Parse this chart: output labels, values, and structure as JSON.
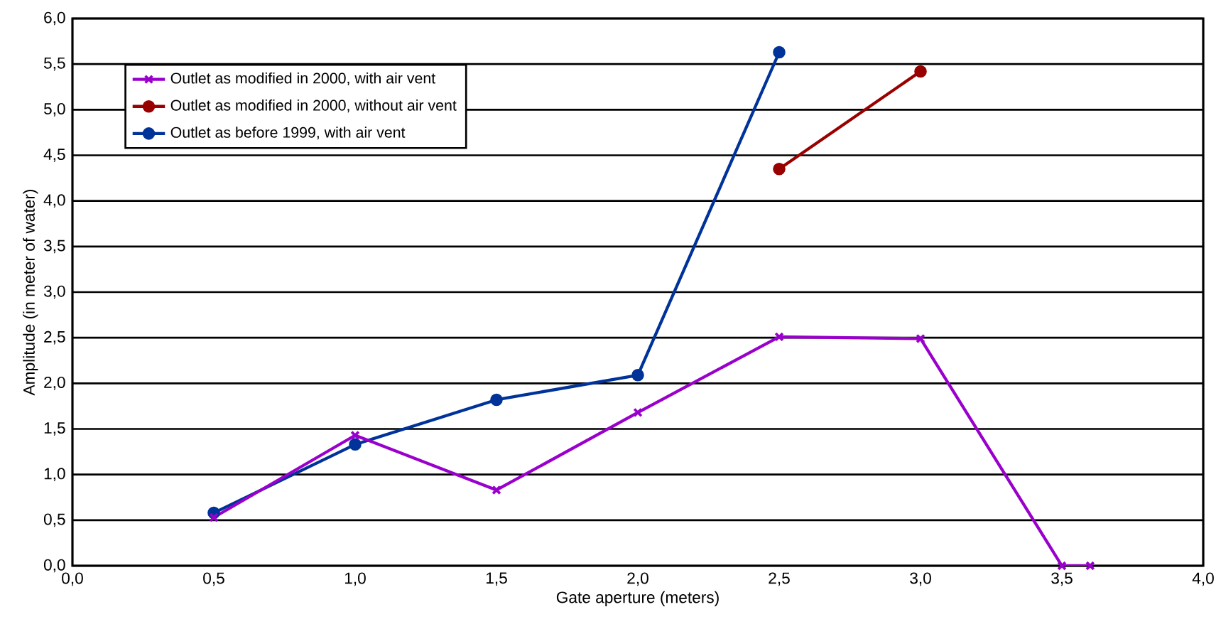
{
  "chart_data": {
    "type": "line",
    "xlabel": "Gate aperture (meters)",
    "ylabel": "Amplitude (in meter of water)",
    "xlim": [
      0,
      4
    ],
    "ylim": [
      0,
      6
    ],
    "xticks": [
      {
        "value": 0,
        "label": "0,0"
      },
      {
        "value": 0.5,
        "label": "0,5"
      },
      {
        "value": 1,
        "label": "1,0"
      },
      {
        "value": 1.5,
        "label": "1,5"
      },
      {
        "value": 2,
        "label": "2,0"
      },
      {
        "value": 2.5,
        "label": "2,5"
      },
      {
        "value": 3,
        "label": "3,0"
      },
      {
        "value": 3.5,
        "label": "3,5"
      },
      {
        "value": 4,
        "label": "4,0"
      }
    ],
    "yticks": [
      {
        "value": 0,
        "label": "0,0"
      },
      {
        "value": 0.5,
        "label": "0,5"
      },
      {
        "value": 1,
        "label": "1,0"
      },
      {
        "value": 1.5,
        "label": "1,5"
      },
      {
        "value": 2,
        "label": "2,0"
      },
      {
        "value": 2.5,
        "label": "2,5"
      },
      {
        "value": 3,
        "label": "3,0"
      },
      {
        "value": 3.5,
        "label": "3,5"
      },
      {
        "value": 4,
        "label": "4,0"
      },
      {
        "value": 4.5,
        "label": "4,5"
      },
      {
        "value": 5,
        "label": "5,0"
      },
      {
        "value": 5.5,
        "label": "5,5"
      },
      {
        "value": 6,
        "label": "6,0"
      }
    ],
    "grid": "y",
    "legend": "top left",
    "line_style": "solid",
    "series": [
      {
        "name": "Outlet as modified in 2000, with air vent",
        "color": "#9900cc",
        "marker": "cross",
        "x": [
          0.5,
          1.0,
          1.5,
          2.0,
          2.5,
          3.0,
          3.5,
          3.6
        ],
        "values": [
          0.53,
          1.43,
          0.83,
          1.68,
          2.51,
          2.49,
          0.0,
          0.0
        ]
      },
      {
        "name": "Outlet as modified in 2000, without air vent",
        "color": "#990000",
        "marker": "circle",
        "x": [
          2.5,
          3.0
        ],
        "values": [
          4.35,
          5.42
        ]
      },
      {
        "name": "Outlet as before 1999, with air vent",
        "color": "#003399",
        "marker": "circle",
        "x": [
          0.5,
          1.0,
          1.5,
          2.0,
          2.5
        ],
        "values": [
          0.58,
          1.33,
          1.82,
          2.09,
          5.63
        ]
      }
    ]
  }
}
